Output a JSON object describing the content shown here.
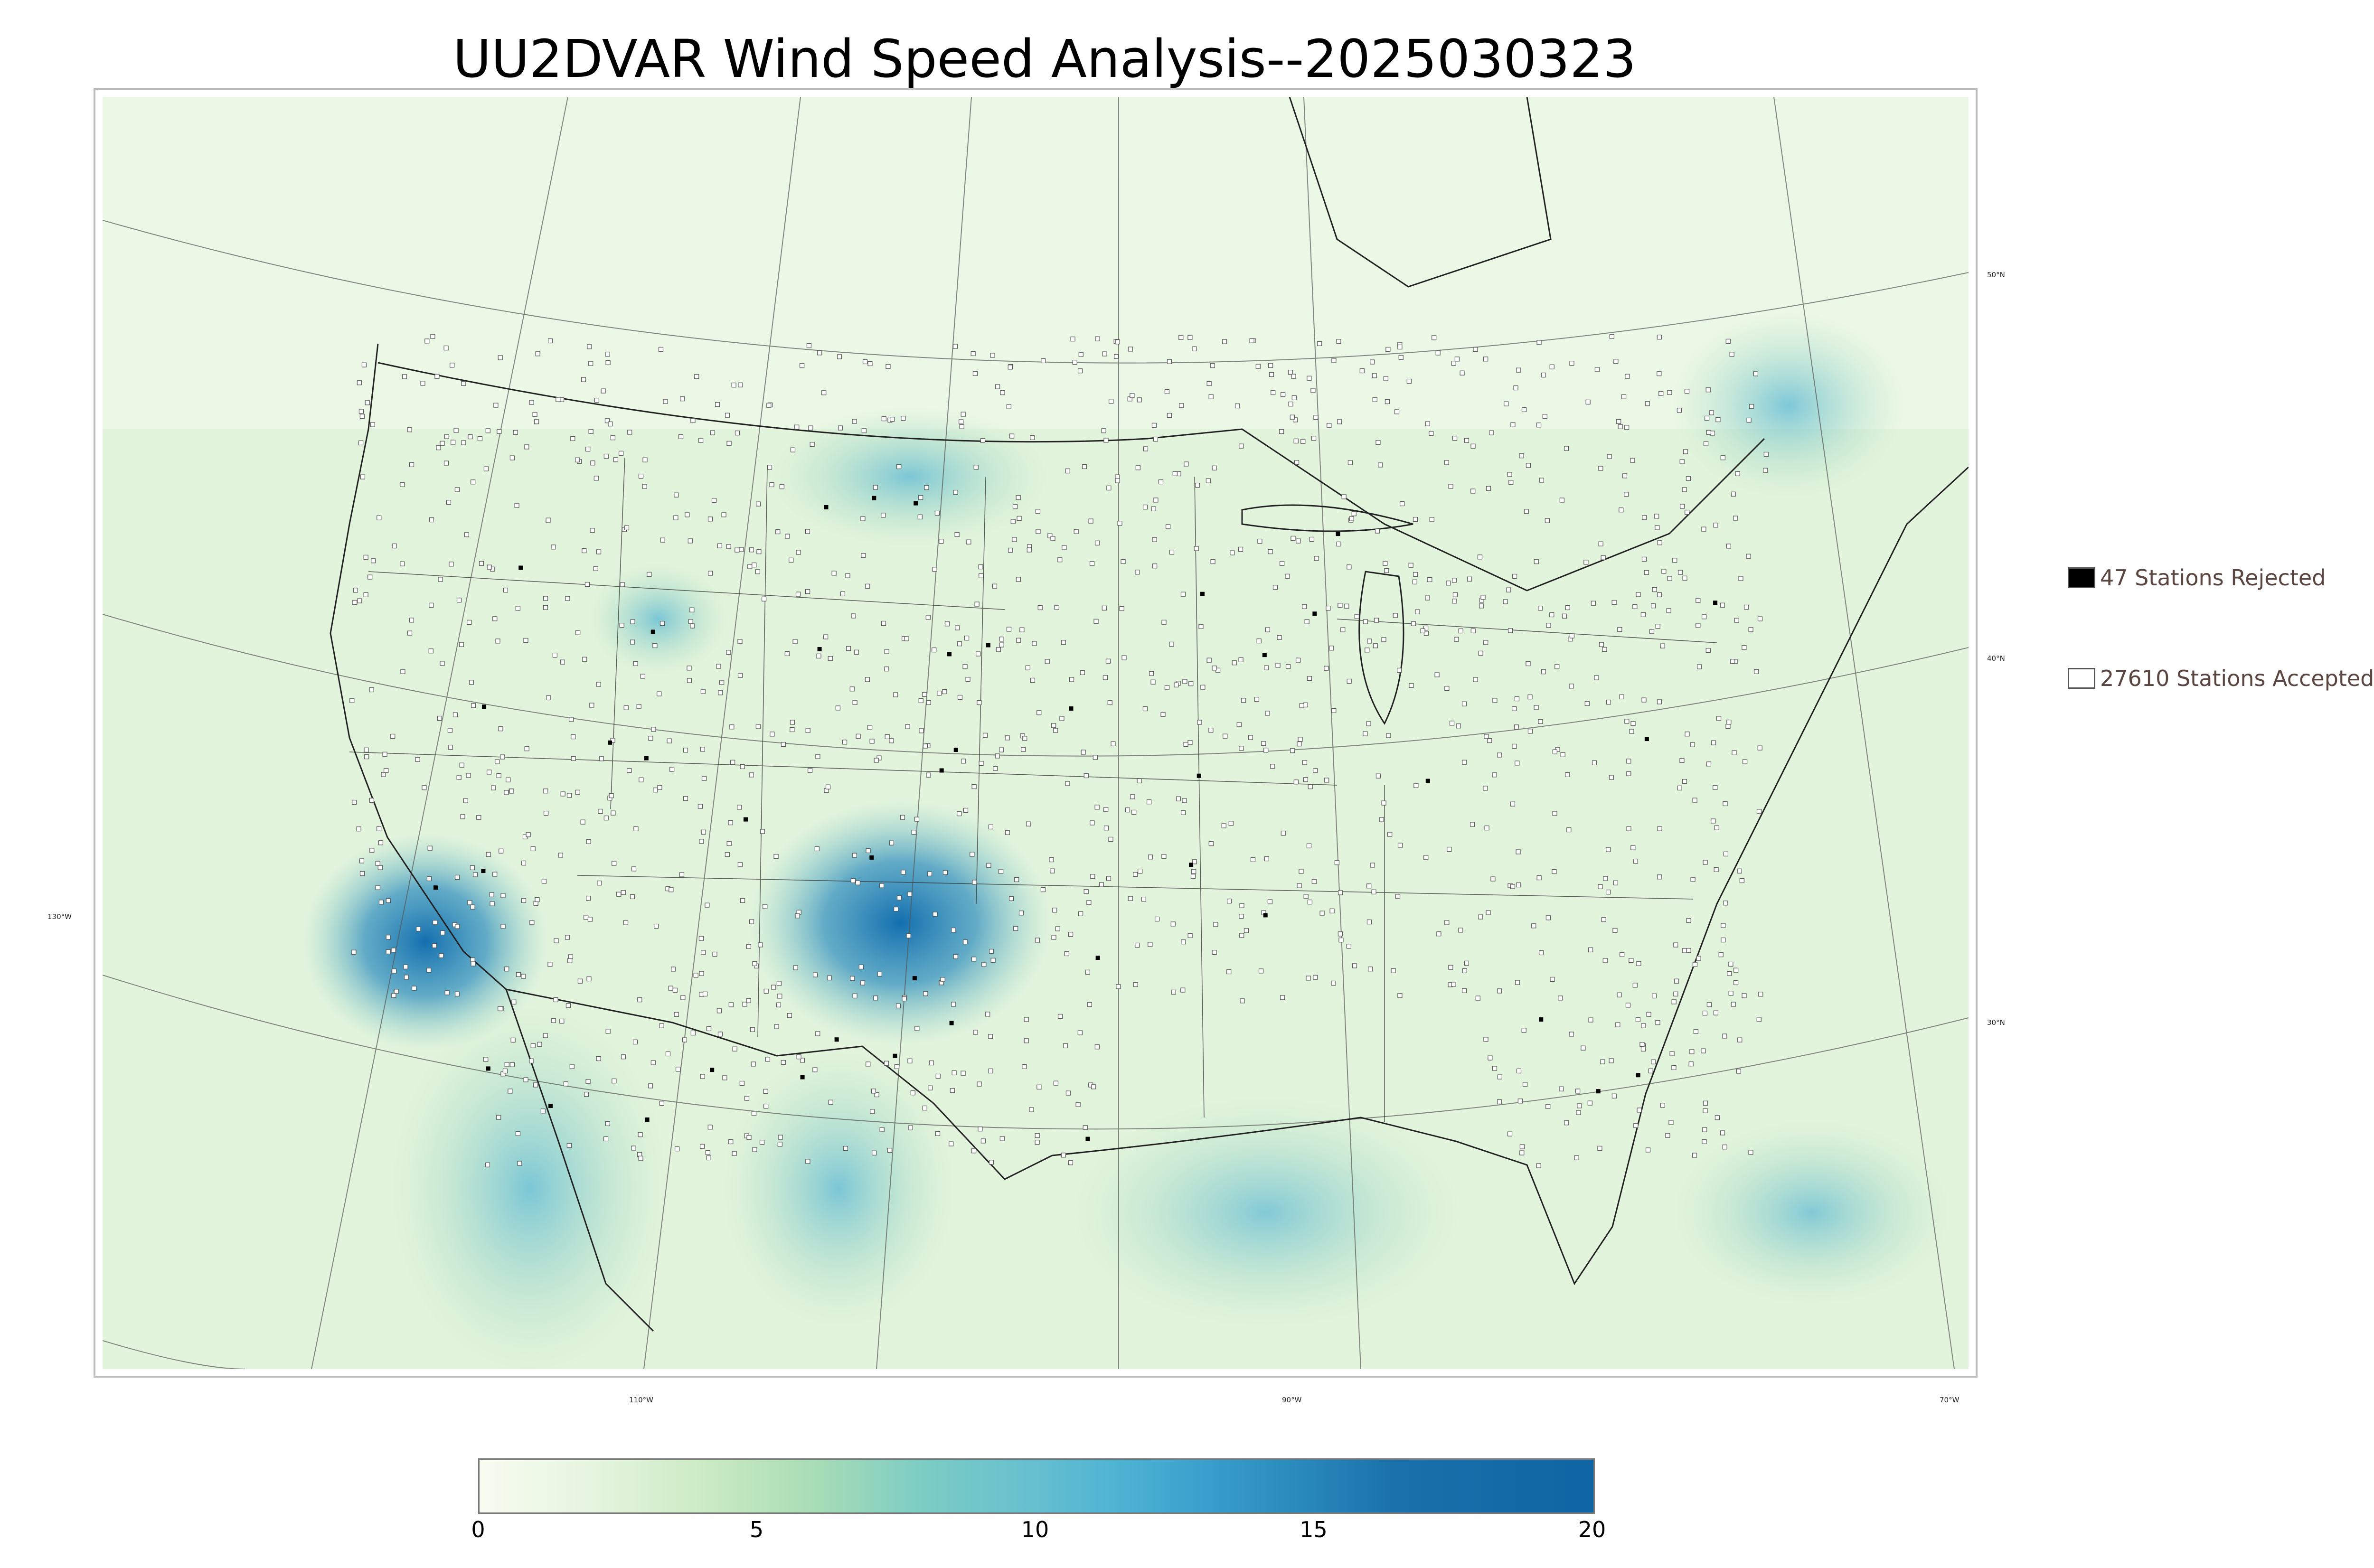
{
  "title": "UU2DVAR Wind Speed Analysis--2025030323",
  "map": {
    "lat_labels": [
      "50°N",
      "40°N",
      "30°N",
      "130°W"
    ],
    "lon_labels": [
      "110°W",
      "90°W",
      "70°W"
    ],
    "background_gradient": [
      "#f7fcf0",
      "#e0f3db",
      "#ccebc5",
      "#a8ddb5",
      "#7bccc4",
      "#4eb3d3",
      "#2b8cbe",
      "#0868ac"
    ],
    "station_marker_accepted": "#ffffff",
    "station_marker_rejected": "#000000"
  },
  "legend": {
    "rejected": "47 Stations Rejected",
    "accepted": "27610 Stations Accepted",
    "rejected_color": "#000000",
    "accepted_color": "#ffffff"
  },
  "colorbar": {
    "min": 0,
    "max": 20,
    "ticks": [
      "0",
      "5",
      "10",
      "15",
      "20"
    ],
    "stops": [
      {
        "v": 0,
        "c": "#f7fcf0"
      },
      {
        "v": 2,
        "c": "#e6f5df"
      },
      {
        "v": 4,
        "c": "#ccebc5"
      },
      {
        "v": 6,
        "c": "#a8ddb5"
      },
      {
        "v": 8,
        "c": "#7bccc4"
      },
      {
        "v": 10,
        "c": "#65bfcf"
      },
      {
        "v": 11.5,
        "c": "#4eb3d3"
      },
      {
        "v": 13,
        "c": "#3a9fcc"
      },
      {
        "v": 14.5,
        "c": "#2b8cbe"
      },
      {
        "v": 16.5,
        "c": "#1a70aa"
      },
      {
        "v": 20,
        "c": "#0f65a3"
      }
    ]
  }
}
